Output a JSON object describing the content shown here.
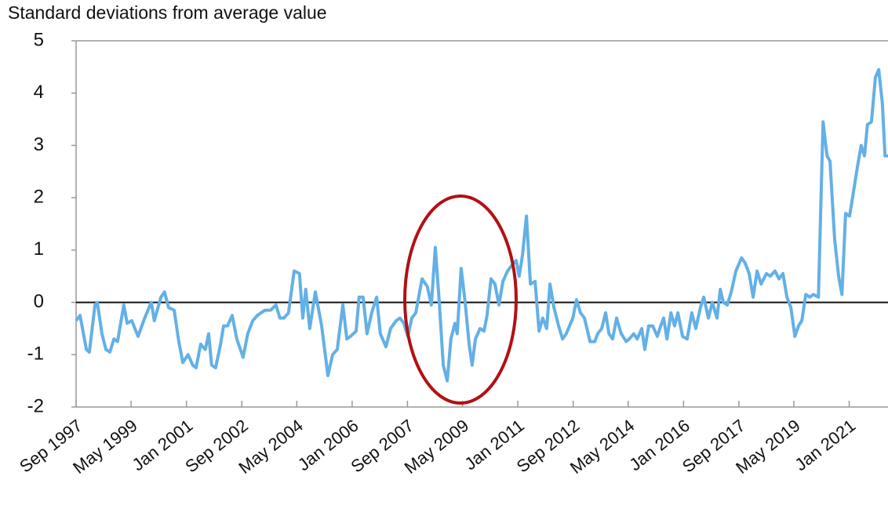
{
  "chart_data": {
    "type": "line",
    "title": "Standard deviations from average value",
    "x": [
      1997.67,
      1997.79,
      1997.98,
      1998.07,
      1998.24,
      1998.31,
      1998.45,
      1998.57,
      1998.69,
      1998.81,
      1998.92,
      1999.11,
      1999.21,
      1999.35,
      1999.54,
      1999.71,
      1999.87,
      1999.94,
      2000.03,
      2000.23,
      2000.34,
      2000.46,
      2000.63,
      2000.77,
      2000.89,
      2001.05,
      2001.19,
      2001.29,
      2001.43,
      2001.57,
      2001.67,
      2001.76,
      2001.88,
      2002.03,
      2002.12,
      2002.24,
      2002.38,
      2002.52,
      2002.71,
      2002.85,
      2003.0,
      2003.14,
      2003.25,
      2003.37,
      2003.54,
      2003.7,
      2003.82,
      2003.94,
      2004.08,
      2004.25,
      2004.41,
      2004.51,
      2004.6,
      2004.72,
      2004.89,
      2005.08,
      2005.27,
      2005.41,
      2005.55,
      2005.72,
      2005.84,
      2005.95,
      2006.12,
      2006.21,
      2006.33,
      2006.45,
      2006.59,
      2006.74,
      2006.85,
      2007.02,
      2007.16,
      2007.33,
      2007.44,
      2007.56,
      2007.68,
      2007.8,
      2007.92,
      2008.11,
      2008.27,
      2008.39,
      2008.51,
      2008.63,
      2008.75,
      2008.87,
      2008.98,
      2009.1,
      2009.17,
      2009.29,
      2009.41,
      2009.53,
      2009.62,
      2009.72,
      2009.86,
      2009.98,
      2010.07,
      2010.19,
      2010.31,
      2010.43,
      2010.55,
      2010.69,
      2010.81,
      2010.95,
      2011.04,
      2011.14,
      2011.26,
      2011.38,
      2011.52,
      2011.64,
      2011.75,
      2011.87,
      2011.97,
      2012.09,
      2012.23,
      2012.35,
      2012.46,
      2012.66,
      2012.77,
      2012.89,
      2013.01,
      2013.18,
      2013.32,
      2013.41,
      2013.53,
      2013.65,
      2013.75,
      2013.86,
      2013.98,
      2014.12,
      2014.27,
      2014.36,
      2014.5,
      2014.6,
      2014.74,
      2014.83,
      2014.95,
      2015.07,
      2015.21,
      2015.31,
      2015.4,
      2015.5,
      2015.62,
      2015.73,
      2015.83,
      2015.97,
      2016.11,
      2016.25,
      2016.37,
      2016.51,
      2016.61,
      2016.75,
      2016.87,
      2017.01,
      2017.11,
      2017.2,
      2017.32,
      2017.44,
      2017.58,
      2017.75,
      2017.86,
      2017.98,
      2018.1,
      2018.22,
      2018.34,
      2018.5,
      2018.62,
      2018.76,
      2018.88,
      2019.0,
      2019.12,
      2019.24,
      2019.36,
      2019.47,
      2019.57,
      2019.69,
      2019.81,
      2019.92,
      2020.07,
      2020.21,
      2020.33,
      2020.42,
      2020.56,
      2020.68,
      2020.78,
      2020.89,
      2021.01,
      2021.1,
      2021.25,
      2021.36,
      2021.46,
      2021.55,
      2021.67,
      2021.79,
      2021.89,
      2022.0,
      2022.08,
      2022.17
    ],
    "series": [
      {
        "color": "#63b0e6",
        "values": [
          -0.35,
          -0.25,
          -0.9,
          -0.95,
          -0.05,
          0,
          -0.6,
          -0.9,
          -0.95,
          -0.7,
          -0.75,
          -0.05,
          -0.4,
          -0.35,
          -0.65,
          -0.35,
          -0.1,
          0,
          -0.35,
          0.1,
          0.2,
          -0.1,
          -0.15,
          -0.75,
          -1.15,
          -1.0,
          -1.2,
          -1.25,
          -0.8,
          -0.9,
          -0.6,
          -1.2,
          -1.25,
          -0.8,
          -0.45,
          -0.45,
          -0.25,
          -0.7,
          -1.05,
          -0.6,
          -0.35,
          -0.25,
          -0.2,
          -0.15,
          -0.15,
          -0.05,
          -0.3,
          -0.3,
          -0.2,
          0.6,
          0.55,
          -0.3,
          0.25,
          -0.5,
          0.2,
          -0.45,
          -1.4,
          -1.0,
          -0.9,
          -0.05,
          -0.7,
          -0.65,
          -0.55,
          0.1,
          0.1,
          -0.6,
          -0.2,
          0.1,
          -0.6,
          -0.85,
          -0.5,
          -0.35,
          -0.3,
          -0.4,
          -0.65,
          -0.3,
          -0.2,
          0.45,
          0.3,
          -0.05,
          1.05,
          0.0,
          -1.2,
          -1.5,
          -0.7,
          -0.4,
          -0.6,
          0.65,
          0.0,
          -0.8,
          -1.2,
          -0.7,
          -0.5,
          -0.55,
          -0.25,
          0.45,
          0.35,
          -0.05,
          0.4,
          0.6,
          0.7,
          0.8,
          0.5,
          0.9,
          1.65,
          0.35,
          0.4,
          -0.55,
          -0.3,
          -0.5,
          0.35,
          -0.1,
          -0.45,
          -0.7,
          -0.6,
          -0.3,
          0.05,
          -0.2,
          -0.3,
          -0.75,
          -0.75,
          -0.6,
          -0.5,
          -0.2,
          -0.6,
          -0.7,
          -0.3,
          -0.6,
          -0.75,
          -0.7,
          -0.6,
          -0.7,
          -0.5,
          -0.9,
          -0.45,
          -0.45,
          -0.65,
          -0.45,
          -0.3,
          -0.7,
          -0.2,
          -0.45,
          -0.2,
          -0.65,
          -0.7,
          -0.2,
          -0.5,
          -0.1,
          0.1,
          -0.3,
          0.0,
          -0.3,
          0.25,
          0.0,
          -0.05,
          0.2,
          0.6,
          0.85,
          0.75,
          0.55,
          0.1,
          0.6,
          0.35,
          0.55,
          0.5,
          0.6,
          0.45,
          0.55,
          0.1,
          -0.1,
          -0.65,
          -0.45,
          -0.35,
          0.15,
          0.1,
          0.15,
          0.1,
          3.45,
          2.8,
          2.7,
          1.2,
          0.5,
          0.15,
          1.7,
          1.65,
          2.0,
          2.6,
          3.0,
          2.8,
          3.4,
          3.45,
          4.3,
          4.45,
          3.8,
          2.8,
          2.8
        ]
      }
    ],
    "xlim": [
      1997.67,
      2022.17
    ],
    "xticks": [
      {
        "value": 1997.67,
        "label": "Sep 1997"
      },
      {
        "value": 1999.33,
        "label": "May 1999"
      },
      {
        "value": 2001.0,
        "label": "Jan 2001"
      },
      {
        "value": 2002.67,
        "label": "Sep 2002"
      },
      {
        "value": 2004.33,
        "label": "May 2004"
      },
      {
        "value": 2006.0,
        "label": "Jan 2006"
      },
      {
        "value": 2007.67,
        "label": "Sep 2007"
      },
      {
        "value": 2009.33,
        "label": "May 2009"
      },
      {
        "value": 2011.0,
        "label": "Jan 2011"
      },
      {
        "value": 2012.67,
        "label": "Sep 2012"
      },
      {
        "value": 2014.33,
        "label": "May 2014"
      },
      {
        "value": 2016.0,
        "label": "Jan 2016"
      },
      {
        "value": 2017.67,
        "label": "Sep 2017"
      },
      {
        "value": 2019.33,
        "label": "May 2019"
      },
      {
        "value": 2021.0,
        "label": "Jan 2021"
      }
    ],
    "ylim": [
      -2,
      5
    ],
    "yticks": [
      -2,
      -1,
      0,
      1,
      2,
      3,
      4,
      5
    ]
  }
}
